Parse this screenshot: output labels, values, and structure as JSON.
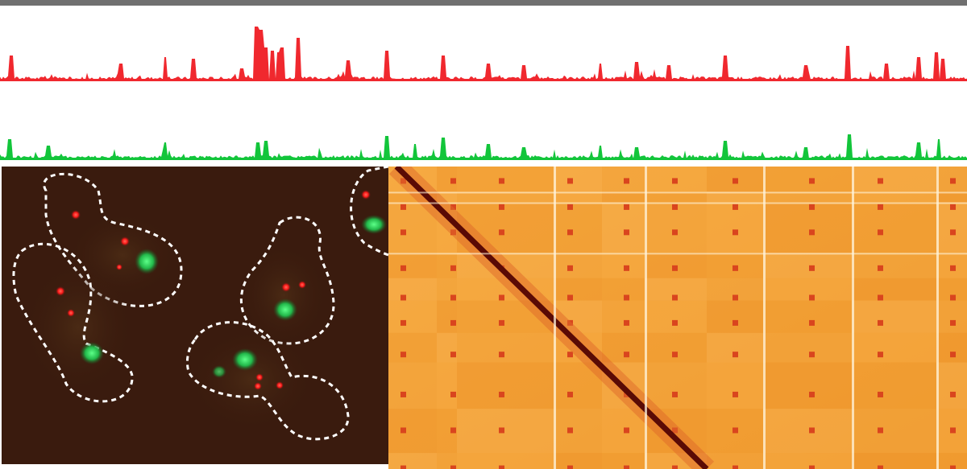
{
  "colors": {
    "track_red": "#f0282e",
    "track_green": "#12c53a",
    "micro_bg": "#3a1b0e",
    "micro_red": "#ff2a2a",
    "micro_green": "#2fd060",
    "micro_outline": "#ffffff",
    "hic_bg": "#f3a23a",
    "hic_dark": "#5a0a05",
    "hic_spot": "#d9451e",
    "hic_gap": "#fff6e0"
  },
  "panels": {
    "tracks": {
      "count": 2,
      "series": [
        "red",
        "green"
      ]
    },
    "microscopy": {
      "cells": 4,
      "fluorophores": [
        "red-foci",
        "green-nucleus"
      ],
      "outline": "dashed"
    },
    "hic_map": {
      "diagonal": "dark",
      "centromere_spots": "present",
      "white_gaps": "present"
    }
  }
}
